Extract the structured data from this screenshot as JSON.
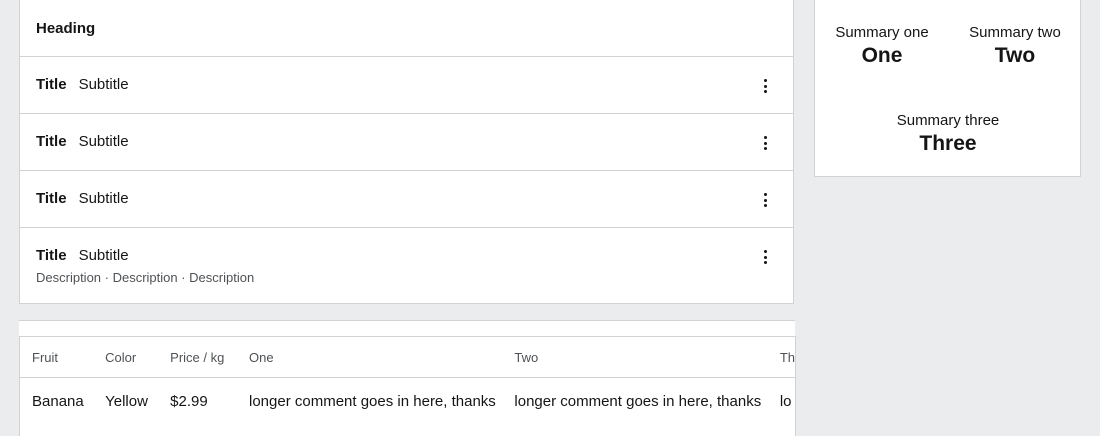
{
  "card": {
    "heading": "Heading",
    "rows": [
      {
        "title": "Title",
        "subtitle": "Subtitle",
        "description": ""
      },
      {
        "title": "Title",
        "subtitle": "Subtitle",
        "description": ""
      },
      {
        "title": "Title",
        "subtitle": "Subtitle",
        "description": ""
      },
      {
        "title": "Title",
        "subtitle": "Subtitle",
        "description": "Description · Description · Description"
      }
    ]
  },
  "table": {
    "headers": [
      "Fruit",
      "Color",
      "Price / kg",
      "One",
      "Two",
      "Th"
    ],
    "rows": [
      [
        "Banana",
        "Yellow",
        "$2.99",
        "longer comment goes in here, thanks",
        "longer comment goes in here, thanks",
        "lo"
      ]
    ]
  },
  "summary": {
    "items": [
      {
        "label": "Summary one",
        "value": "One"
      },
      {
        "label": "Summary two",
        "value": "Two"
      },
      {
        "label": "Summary three",
        "value": "Three"
      }
    ]
  },
  "icons": {
    "row_action": "kebab-menu-icon"
  }
}
